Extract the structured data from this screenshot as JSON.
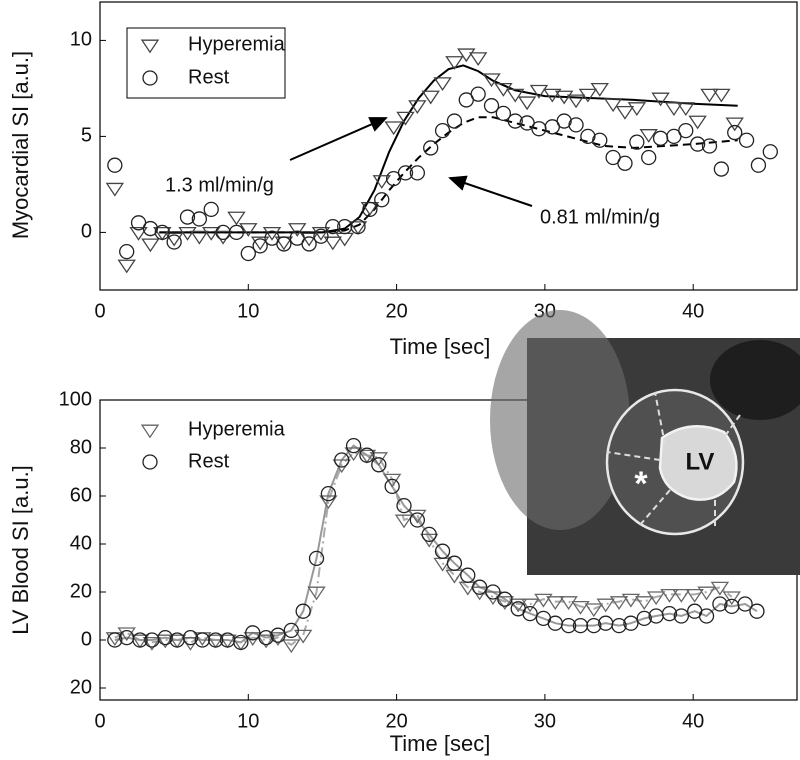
{
  "chart_data": [
    {
      "type": "scatter",
      "xlabel": "Time [sec]",
      "ylabel": "Myocardial SI [a.u.]",
      "xlim": [
        0,
        47
      ],
      "xticks": [
        0,
        10,
        20,
        30,
        40
      ],
      "ylim": [
        -3,
        12
      ],
      "yticks": [
        0,
        5,
        10
      ],
      "legend": "upper left",
      "legend_box": true,
      "series": [
        {
          "name": "Hyperemia",
          "color": "#444444",
          "marker": "triangle",
          "x": [
            1,
            1.8,
            2.6,
            3.4,
            4.2,
            5,
            5.9,
            6.7,
            7.5,
            8.3,
            9.2,
            10,
            10.8,
            11.6,
            12.4,
            13.3,
            14.1,
            14.9,
            15.7,
            16.5,
            17.4,
            18.2,
            19,
            19.8,
            20.6,
            21.4,
            22.3,
            23.1,
            23.9,
            24.7,
            25.5,
            26.4,
            27.2,
            28,
            28.8,
            29.6,
            30.5,
            31.3,
            32.1,
            32.9,
            33.7,
            34.6,
            35.4,
            36.2,
            37,
            37.8,
            38.7,
            39.5,
            40.3,
            41.1,
            41.9,
            42.8
          ],
          "values": [
            2.3,
            -1.7,
            0,
            -0.6,
            0,
            -0.3,
            0,
            -0.2,
            0,
            -0.2,
            0.8,
            0.2,
            -0.5,
            0,
            -0.5,
            0.2,
            -0.3,
            0,
            -0.5,
            -0.3,
            0.3,
            1.3,
            2.7,
            5.5,
            6,
            6.6,
            7.1,
            7.8,
            8.9,
            9.3,
            9.1,
            8,
            7.5,
            7.2,
            6.8,
            7.4,
            7.2,
            7.1,
            6.9,
            7.2,
            7.5,
            6.7,
            6.3,
            6.5,
            5.1,
            7,
            6.5,
            6.5,
            5.8,
            7.2,
            7.2,
            5.7
          ]
        },
        {
          "name": "Rest",
          "color": "#222222",
          "marker": "circle",
          "x": [
            1,
            1.8,
            2.6,
            3.4,
            4.2,
            5,
            5.9,
            6.7,
            7.5,
            8.3,
            9.2,
            10,
            10.8,
            11.6,
            12.4,
            13.3,
            14.1,
            14.9,
            15.7,
            16.5,
            17.4,
            18.2,
            19,
            19.8,
            20.6,
            21.4,
            22.3,
            23.1,
            23.9,
            24.7,
            25.5,
            26.4,
            27.2,
            28,
            28.8,
            29.6,
            30.5,
            31.3,
            32.1,
            32.9,
            33.7,
            34.6,
            35.4,
            36.2,
            37,
            37.8,
            38.7,
            39.5,
            40.3,
            41.1,
            41.9,
            42.8,
            43.6,
            44.4,
            45.2
          ],
          "values": [
            3.5,
            -1,
            0.5,
            0.2,
            0,
            -0.5,
            0.8,
            0.7,
            1.2,
            0,
            0,
            -1.1,
            -0.7,
            -0.3,
            -0.6,
            -0.3,
            -0.6,
            -0.2,
            0.3,
            0.3,
            0.3,
            1.2,
            1.7,
            2.8,
            3.1,
            3.1,
            4.4,
            5.3,
            5.8,
            6.9,
            7.2,
            6.6,
            6.2,
            5.8,
            5.7,
            5.4,
            5.5,
            5.8,
            5.6,
            5,
            4.8,
            3.9,
            3.6,
            4.7,
            3.9,
            4.9,
            5,
            5.3,
            4.6,
            4.5,
            3.3,
            5.2,
            4.8,
            3.5,
            4.2
          ]
        }
      ],
      "fits": [
        {
          "color": "#000000",
          "dash": false,
          "x": [
            4,
            10,
            15,
            16.5,
            17.5,
            18.5,
            19.5,
            20.5,
            21.5,
            22.5,
            23.5,
            24.5,
            25.5,
            26.5,
            28,
            30,
            33,
            36,
            40,
            43
          ],
          "values": [
            0,
            0,
            0,
            0.2,
            0.8,
            2.2,
            4.2,
            5.8,
            7,
            7.9,
            8.5,
            8.7,
            8.4,
            7.9,
            7.4,
            7.1,
            7,
            6.9,
            6.7,
            6.6
          ]
        },
        {
          "color": "#000000",
          "dash": true,
          "x": [
            4,
            10,
            15,
            16.5,
            17.5,
            18.5,
            19.5,
            20.5,
            21.5,
            22.5,
            23.5,
            24.5,
            25.5,
            26.5,
            28,
            30,
            32,
            34,
            36,
            38,
            40,
            43
          ],
          "values": [
            0,
            0,
            0,
            0.1,
            0.4,
            1.2,
            2.2,
            3.1,
            3.9,
            4.6,
            5.2,
            5.7,
            6,
            6,
            5.7,
            5.3,
            4.9,
            4.5,
            4.4,
            4.5,
            4.6,
            4.8
          ]
        }
      ],
      "annotations": [
        "1.3 ml/min/g",
        "0.81 ml/min/g"
      ]
    },
    {
      "type": "scatter",
      "xlabel": "Time [sec]",
      "ylabel": "LV Blood SI [a.u.]",
      "xlim": [
        0,
        47
      ],
      "xticks": [
        0,
        10,
        20,
        30,
        40
      ],
      "ylim": [
        -25,
        100
      ],
      "yticks": [
        {
          "value": -20,
          "label": "20"
        },
        0,
        20,
        40,
        60,
        80,
        100
      ],
      "legend": "upper left",
      "legend_box": false,
      "series": [
        {
          "name": "Hyperemia",
          "color": "#666666",
          "marker": "triangle",
          "line_color": "#aaaaaa",
          "line_dash": "dashdot",
          "x": [
            1,
            1.8,
            2.7,
            3.5,
            4.4,
            5.2,
            6.1,
            6.9,
            7.8,
            8.6,
            9.5,
            10.3,
            11.2,
            12,
            12.9,
            13.7,
            14.6,
            15.4,
            16.3,
            17.1,
            18,
            18.8,
            19.7,
            20.5,
            21.4,
            22.2,
            23.1,
            23.9,
            24.8,
            25.6,
            26.5,
            27.3,
            28.2,
            29,
            29.9,
            30.7,
            31.6,
            32.4,
            33.3,
            34.1,
            35,
            35.8,
            36.7,
            37.5,
            38.4,
            39.2,
            40.1,
            40.9,
            41.8,
            42.6
          ],
          "values": [
            1,
            3,
            0,
            -1,
            0,
            0,
            -1,
            1,
            0,
            0,
            -1,
            1,
            0,
            1,
            -2,
            2,
            20,
            58,
            73,
            78,
            77,
            76,
            67,
            50,
            52,
            42,
            32,
            27,
            22,
            20,
            18,
            16,
            15,
            15,
            17,
            16,
            16,
            14,
            13,
            15,
            16,
            17,
            16,
            18,
            19,
            19,
            19,
            20,
            22,
            18
          ]
        },
        {
          "name": "Rest",
          "color": "#222222",
          "marker": "circle",
          "line_color": "#999999",
          "line_dash": "solid",
          "x": [
            1,
            1.8,
            2.7,
            3.5,
            4.4,
            5.2,
            6.1,
            6.9,
            7.8,
            8.6,
            9.5,
            10.3,
            11.2,
            12,
            12.9,
            13.7,
            14.6,
            15.4,
            16.3,
            17.1,
            18,
            18.8,
            19.7,
            20.5,
            21.4,
            22.2,
            23.1,
            23.9,
            24.8,
            25.6,
            26.5,
            27.3,
            28.2,
            29,
            29.9,
            30.7,
            31.6,
            32.4,
            33.3,
            34.1,
            35,
            35.8,
            36.7,
            37.5,
            38.4,
            39.2,
            40.1,
            40.9,
            41.8,
            42.6,
            43.5,
            44.3
          ],
          "values": [
            0,
            1,
            0,
            0,
            1,
            0,
            1,
            0,
            0,
            0,
            -1,
            3,
            1,
            2,
            4,
            12,
            34,
            61,
            75,
            81,
            77,
            73,
            64,
            56,
            50,
            44,
            37,
            32,
            27,
            22,
            20,
            17,
            13,
            11,
            9,
            7,
            6,
            6,
            6,
            7,
            6,
            7,
            9,
            10,
            11,
            10,
            12,
            10,
            15,
            14,
            15,
            12
          ]
        }
      ]
    }
  ],
  "inset": {
    "label": "LV",
    "marker": "*"
  }
}
